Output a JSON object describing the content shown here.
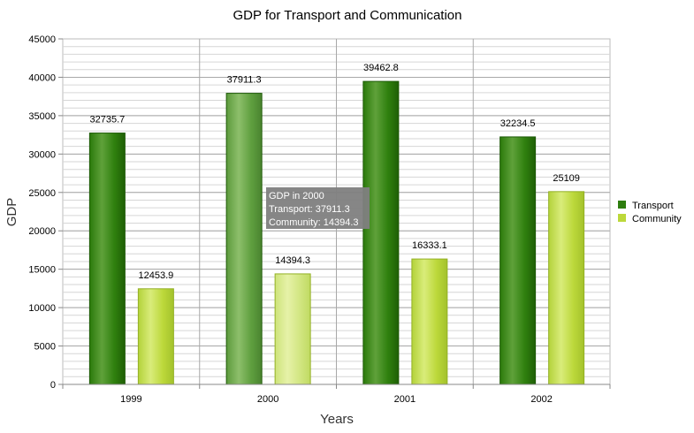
{
  "chart_data": {
    "type": "bar",
    "title": "GDP for Transport and Communication",
    "xlabel": "Years",
    "ylabel": "GDP",
    "categories": [
      "1999",
      "2000",
      "2001",
      "2002"
    ],
    "series": [
      {
        "name": "Transport",
        "values": [
          32735.7,
          37911.3,
          39462.8,
          32234.5
        ],
        "color": "#2e7d0f"
      },
      {
        "name": "Community",
        "values": [
          12453.9,
          14394.3,
          16333.1,
          25109
        ],
        "color": "#bcd83a"
      }
    ],
    "ylim": [
      0,
      45000
    ],
    "yticks": [
      0,
      5000,
      10000,
      15000,
      20000,
      25000,
      30000,
      35000,
      40000,
      45000
    ],
    "grid": true,
    "legend_position": "right",
    "highlighted_category": "2000"
  },
  "tooltip": {
    "line1": "GDP in 2000",
    "line2": "Transport: 37911.3",
    "line3": "Community: 14394.3"
  }
}
